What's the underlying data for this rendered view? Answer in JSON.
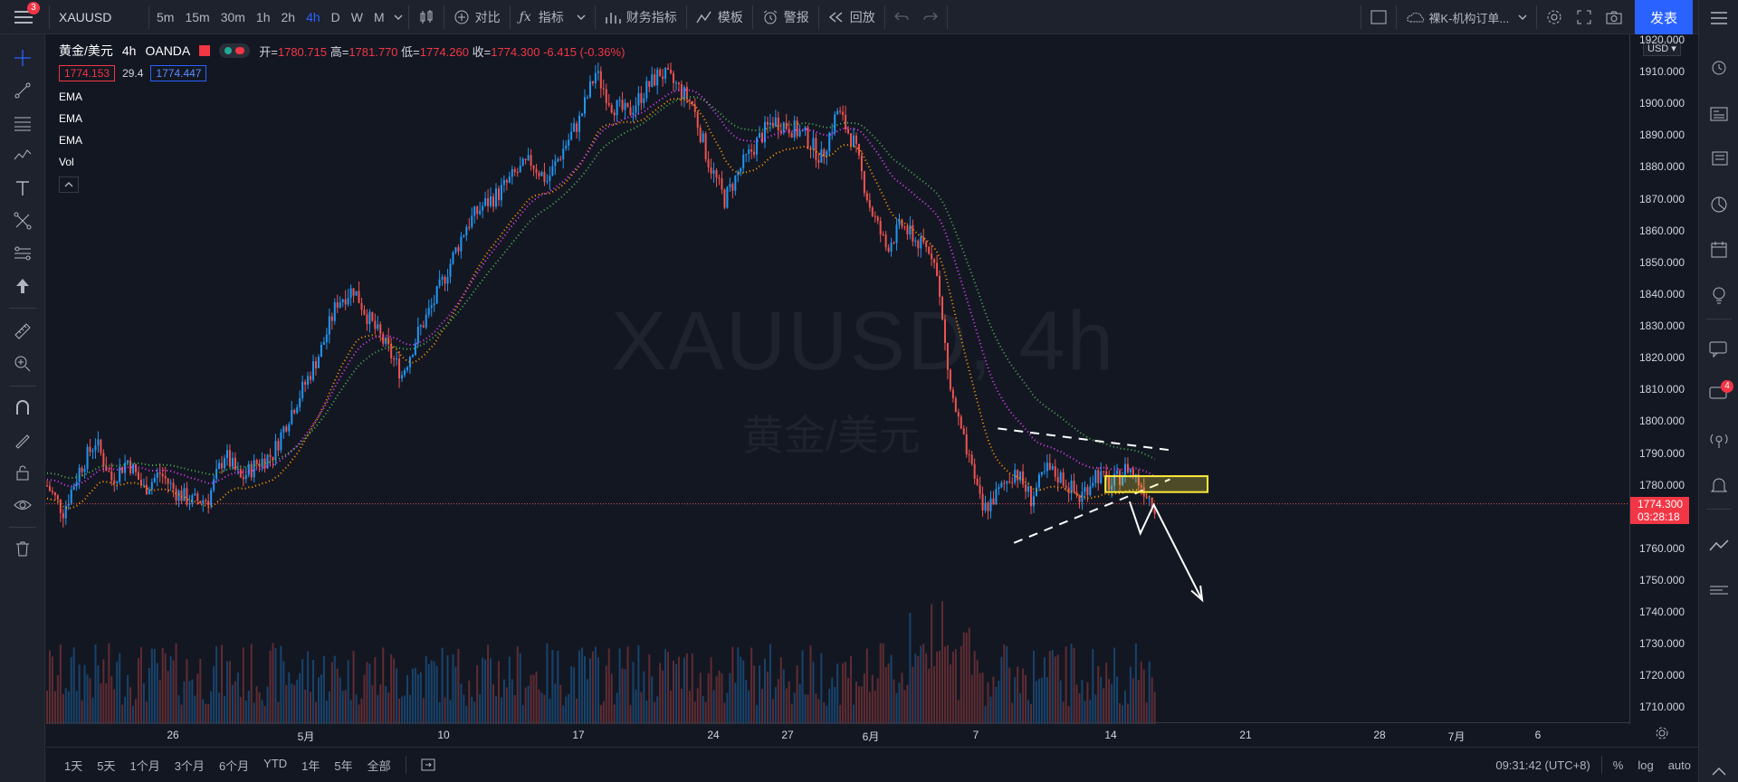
{
  "topbar": {
    "notifications": "3",
    "symbol": "XAUUSD",
    "intervals": [
      "5m",
      "15m",
      "30m",
      "1h",
      "2h",
      "4h",
      "D",
      "W",
      "M"
    ],
    "active_interval": "4h",
    "compare": "对比",
    "indicators": "指标",
    "financials": "财务指标",
    "templates": "模板",
    "alert": "警报",
    "replay": "回放",
    "layout_name": "裸K-机构订单...",
    "publish": "发表"
  },
  "legend": {
    "title": "黄金/美元",
    "interval": "4h",
    "source": "OANDA",
    "open_label": "开=",
    "open": "1780.715",
    "high_label": "高=",
    "high": "1781.770",
    "low_label": "低=",
    "low": "1774.260",
    "close_label": "收=",
    "close": "1774.300",
    "change": "-6.415 (-0.36%)",
    "bid": "1774.153",
    "spread": "29.4",
    "ask": "1774.447",
    "indicators": [
      "EMA",
      "EMA",
      "EMA",
      "Vol"
    ]
  },
  "watermark": {
    "symbol": "XAUUSD, 4h",
    "name": "黄金/美元"
  },
  "price_axis": {
    "currency": "USD",
    "ticks": [
      "1920.000",
      "1910.000",
      "1900.000",
      "1890.000",
      "1880.000",
      "1870.000",
      "1860.000",
      "1850.000",
      "1840.000",
      "1830.000",
      "1820.000",
      "1810.000",
      "1800.000",
      "1790.000",
      "1780.000",
      "1770.000",
      "1760.000",
      "1750.000",
      "1740.000",
      "1730.000",
      "1720.000",
      "1710.000"
    ],
    "current_price": "1774.300",
    "countdown": "03:28:18"
  },
  "time_axis": {
    "labels": [
      "26",
      "5月",
      "10",
      "17",
      "24",
      "27",
      "6月",
      "7",
      "14",
      "21",
      "28",
      "7月",
      "6"
    ]
  },
  "bottombar": {
    "ranges": [
      "1天",
      "5天",
      "1个月",
      "3个月",
      "6个月",
      "YTD",
      "1年",
      "5年",
      "全部"
    ],
    "time": "09:31:42 (UTC+8)",
    "percent": "%",
    "log": "log",
    "auto": "auto"
  },
  "right_toolbar": {
    "chat_badge": "4"
  },
  "colors": {
    "bg": "#131722",
    "up": "#2196f3",
    "down": "#ef5350",
    "ema_fast": "#ff9800",
    "ema_mid": "#e040fb",
    "ema_slow": "#4caf50",
    "accent": "#2962ff",
    "zone": "#ffeb3b"
  },
  "chart_data": {
    "type": "candlestick",
    "symbol": "XAUUSD",
    "ylim": [
      1705,
      1922
    ],
    "close_path": [
      [
        0,
        1780
      ],
      [
        6,
        1772
      ],
      [
        12,
        1785
      ],
      [
        18,
        1794
      ],
      [
        24,
        1782
      ],
      [
        30,
        1788
      ],
      [
        36,
        1779
      ],
      [
        42,
        1784
      ],
      [
        48,
        1778
      ],
      [
        54,
        1775
      ],
      [
        60,
        1776
      ],
      [
        66,
        1790
      ],
      [
        72,
        1782
      ],
      [
        78,
        1787
      ],
      [
        84,
        1790
      ],
      [
        90,
        1802
      ],
      [
        96,
        1812
      ],
      [
        102,
        1823
      ],
      [
        108,
        1838
      ],
      [
        114,
        1842
      ],
      [
        120,
        1832
      ],
      [
        126,
        1824
      ],
      [
        132,
        1815
      ],
      [
        138,
        1828
      ],
      [
        144,
        1838
      ],
      [
        150,
        1850
      ],
      [
        156,
        1862
      ],
      [
        162,
        1868
      ],
      [
        168,
        1872
      ],
      [
        174,
        1878
      ],
      [
        180,
        1882
      ],
      [
        186,
        1876
      ],
      [
        192,
        1886
      ],
      [
        198,
        1895
      ],
      [
        204,
        1910
      ],
      [
        210,
        1900
      ],
      [
        216,
        1897
      ],
      [
        222,
        1904
      ],
      [
        228,
        1910
      ],
      [
        234,
        1906
      ],
      [
        240,
        1900
      ],
      [
        246,
        1882
      ],
      [
        252,
        1870
      ],
      [
        258,
        1880
      ],
      [
        264,
        1888
      ],
      [
        270,
        1895
      ],
      [
        276,
        1893
      ],
      [
        282,
        1890
      ],
      [
        288,
        1883
      ],
      [
        294,
        1898
      ],
      [
        300,
        1888
      ],
      [
        306,
        1868
      ],
      [
        312,
        1855
      ],
      [
        318,
        1862
      ],
      [
        324,
        1856
      ],
      [
        330,
        1853
      ],
      [
        336,
        1810
      ],
      [
        342,
        1790
      ],
      [
        348,
        1772
      ],
      [
        354,
        1778
      ],
      [
        360,
        1785
      ],
      [
        366,
        1776
      ],
      [
        372,
        1785
      ],
      [
        378,
        1782
      ],
      [
        384,
        1776
      ],
      [
        390,
        1784
      ],
      [
        396,
        1780
      ],
      [
        402,
        1786
      ],
      [
        408,
        1779
      ],
      [
        412,
        1774
      ]
    ],
    "ema_fast": {
      "start": 1747,
      "end": 1802
    },
    "ema_mid": {
      "start": 1742,
      "end": 1816
    },
    "ema_slow": {
      "start": 1741,
      "end": 1825
    }
  }
}
